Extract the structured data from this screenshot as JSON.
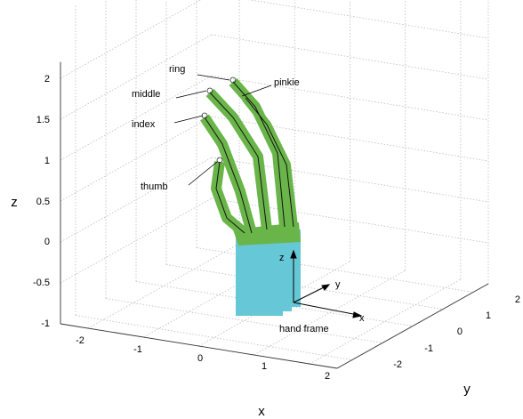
{
  "axes": {
    "x": {
      "label": "x",
      "ticks": [
        "-2",
        "-1",
        "0",
        "1",
        "2"
      ]
    },
    "y": {
      "label": "y",
      "ticks": [
        "-2",
        "-1",
        "0",
        "1",
        "2"
      ]
    },
    "z": {
      "label": "z",
      "ticks": [
        "-1",
        "-0.5",
        "0",
        "0.5",
        "1",
        "1.5",
        "2"
      ]
    }
  },
  "annotations": {
    "fingers": [
      "ring",
      "middle",
      "pinkie",
      "index",
      "thumb"
    ],
    "frame": {
      "label": "hand frame",
      "axes": [
        "z",
        "y",
        "x"
      ]
    }
  }
}
